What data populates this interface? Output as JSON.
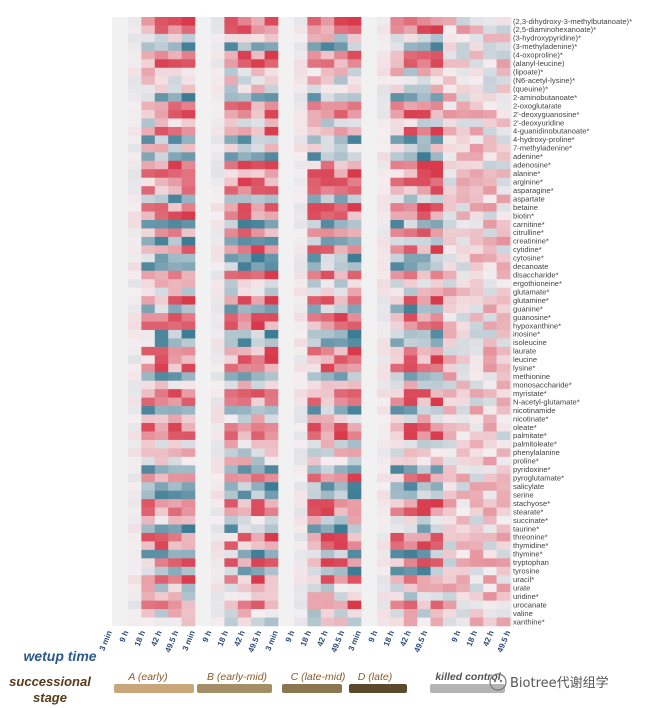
{
  "chart_data": {
    "type": "heatmap",
    "row_captions": {
      "wetup": "wetup time",
      "stage_line1": "successional",
      "stage_line2": "stage"
    },
    "wetup_times": [
      "3 min",
      "9 h",
      "18 h",
      "42 h",
      "49.5 h"
    ],
    "stages": [
      {
        "label": "A (early)",
        "color": "#c9a77a",
        "text_color": "#8a5a2a"
      },
      {
        "label": "B (early-mid)",
        "color": "#a48e68",
        "text_color": "#8a5a2a"
      },
      {
        "label": "C (late-mid)",
        "color": "#8c7650",
        "text_color": "#8a5a2a"
      },
      {
        "label": "D (late)",
        "color": "#5c4a2c",
        "text_color": "#8a5a2a"
      },
      {
        "label": "killed control",
        "color": "#b4b4b4",
        "text_color": "#555555"
      }
    ],
    "color_scale": {
      "low": "#3c7c94",
      "mid": "#f4eef0",
      "high": "#d83a4c"
    },
    "metabolites": [
      "(2,3-dihydroxy-3-methylbutanoate)*",
      "(2,5-diaminohexanoate)*",
      "(3-hydroxypyridine)*",
      "(3-methyladenine)*",
      "(4-oxoproline)*",
      "(alanyl-leucine)",
      "(lipoate)*",
      "(N6-acetyl-lysine)*",
      "(queuine)*",
      "2-aminobutanoate*",
      "2-oxoglutarate",
      "2'-deoxyguanosine*",
      "2'-deoxyuridine",
      "4-guanidinobutanoate*",
      "4-hydroxy-proline*",
      "7-methyladenine*",
      "adenine*",
      "adenosine*",
      "alanine*",
      "arginine*",
      "asparagine*",
      "aspartate",
      "betaine",
      "biotin*",
      "carnitine*",
      "citrulline*",
      "creatinine*",
      "cytidine*",
      "cytosine*",
      "decanoate",
      "disaccharide*",
      "ergothioneine*",
      "glutamate*",
      "glutamine*",
      "guanine*",
      "guanosine*",
      "hypoxanthine*",
      "inosine*",
      "isoleucine",
      "laurate",
      "leucine",
      "lysine*",
      "methionine",
      "monosaccharide*",
      "myristate*",
      "N-acetyl-glutamate*",
      "nicotinamide",
      "nicotinate*",
      "oleate*",
      "palmitate*",
      "palmitoleate*",
      "phenylalanine",
      "proline*",
      "pyridoxine*",
      "pyroglutamate*",
      "salicylate",
      "serine",
      "stachyose*",
      "stearate*",
      "succinate*",
      "taurine*",
      "threonine*",
      "thymidine*",
      "thymine*",
      "tryptophan",
      "tyrosine",
      "uracil*",
      "urate",
      "uridine*",
      "urocanate",
      "valine",
      "xanthine*"
    ]
  },
  "watermark": "Biotree代谢组学"
}
